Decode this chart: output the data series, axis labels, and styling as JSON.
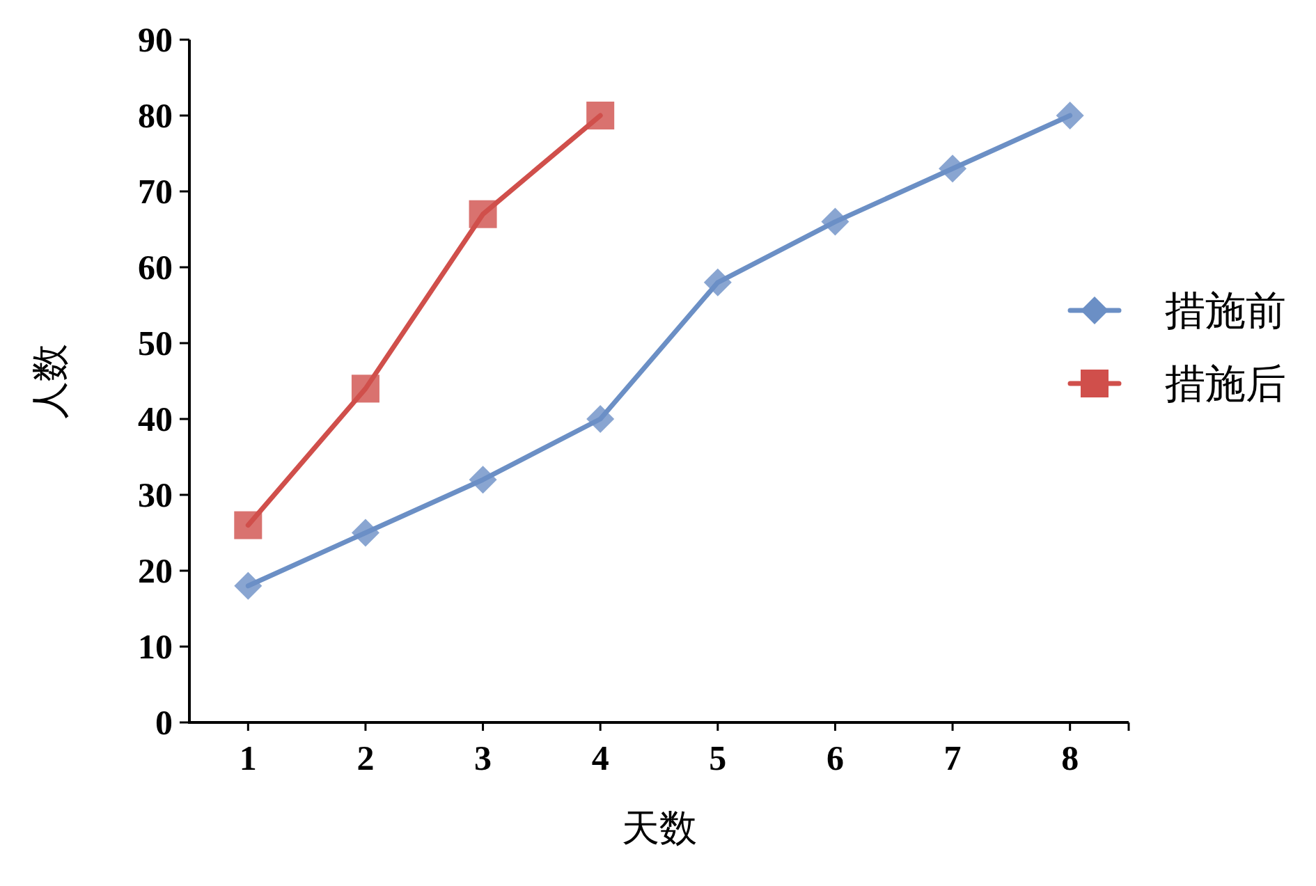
{
  "chart_data": {
    "type": "line",
    "xlabel": "天数",
    "ylabel": "人数",
    "categories": [
      "1",
      "2",
      "3",
      "4",
      "5",
      "6",
      "7",
      "8"
    ],
    "ylim": [
      0,
      90
    ],
    "yticks": [
      0,
      10,
      20,
      30,
      40,
      50,
      60,
      70,
      80,
      90
    ],
    "grid": false,
    "legend": "right",
    "series": [
      {
        "name": "措施前",
        "color": "#6b8fc5",
        "marker": "diamond",
        "values": [
          18,
          25,
          32,
          40,
          58,
          66,
          73,
          80
        ]
      },
      {
        "name": "措施后",
        "color": "#d04f4b",
        "marker": "square",
        "values": [
          26,
          44,
          67,
          80,
          null,
          null,
          null,
          null
        ]
      }
    ]
  }
}
